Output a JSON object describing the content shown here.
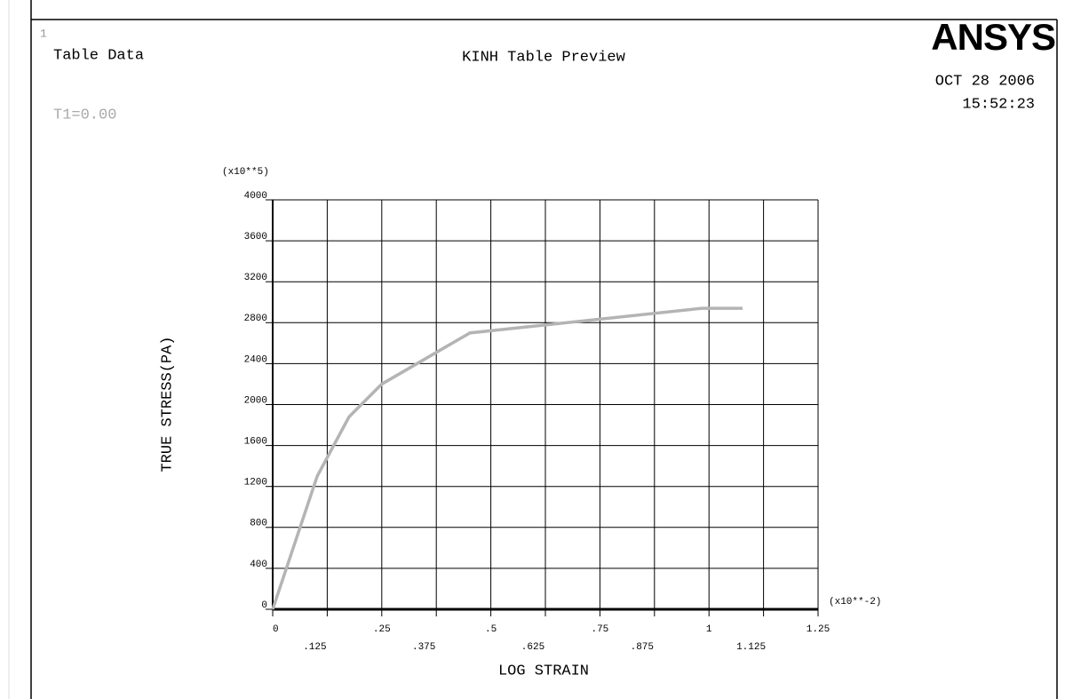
{
  "header": {
    "window_number": "1",
    "left_title": "Table Data",
    "time_label": "T1=0.00",
    "logo": "ANSYS",
    "date": "OCT 28 2006",
    "time": "15:52:23"
  },
  "chart_data": {
    "type": "line",
    "title": "KINH Table Preview",
    "x_label": "LOG STRAIN",
    "y_label": "TRUE STRESS(PA)",
    "x_multiplier": "(x10**-2)",
    "y_multiplier": "(x10**5)",
    "x": [
      0,
      0.102,
      0.175,
      0.25,
      0.452,
      0.983,
      1.077
    ],
    "values": [
      0,
      1300,
      1880,
      2200,
      2700,
      2940,
      2940
    ],
    "color": "#b4b4b4",
    "xlim": [
      0,
      1.25
    ],
    "xticks": [
      0,
      {
        "value": 0.125,
        "label": ".125"
      },
      {
        "value": 0.25,
        "label": ".25"
      },
      {
        "value": 0.375,
        "label": ".375"
      },
      {
        "value": 0.5,
        "label": ".5"
      },
      {
        "value": 0.625,
        "label": ".625"
      },
      {
        "value": 0.75,
        "label": ".75"
      },
      {
        "value": 0.875,
        "label": ".875"
      },
      1,
      1.125,
      1.25
    ],
    "ylim": [
      0,
      4000
    ],
    "yticks": [
      0,
      400,
      800,
      1200,
      1600,
      2000,
      2400,
      2800,
      3200,
      3600,
      4000
    ],
    "grid": true
  }
}
